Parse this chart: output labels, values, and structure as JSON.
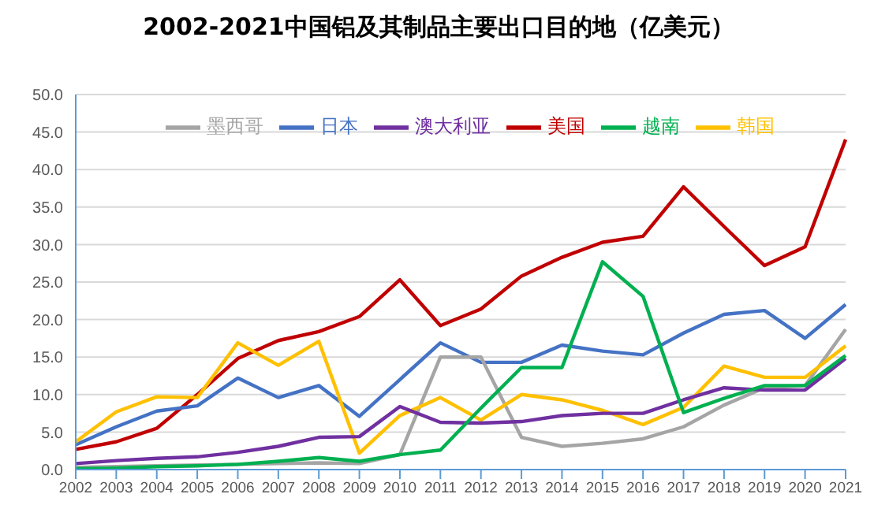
{
  "chart_data": {
    "type": "line",
    "title": "2002-2021中国铝及其制品主要出口目的地（亿美元）",
    "categories": [
      "2002",
      "2003",
      "2004",
      "2005",
      "2006",
      "2007",
      "2008",
      "2009",
      "2010",
      "2011",
      "2012",
      "2013",
      "2014",
      "2015",
      "2016",
      "2017",
      "2018",
      "2019",
      "2020",
      "2021"
    ],
    "series": [
      {
        "name": "美国",
        "color": "#c00000",
        "values": [
          2.7,
          3.7,
          5.5,
          10,
          14.8,
          17.2,
          18.4,
          20.4,
          25.3,
          19.2,
          21.4,
          25.8,
          28.3,
          30.3,
          31.1,
          37.7,
          32.4,
          27.2,
          29.7,
          44.0
        ]
      },
      {
        "name": "日本",
        "color": "#4472c4",
        "values": [
          3.3,
          5.7,
          7.8,
          8.5,
          12.2,
          9.6,
          11.2,
          7.1,
          12.0,
          16.9,
          14.3,
          14.3,
          16.6,
          15.8,
          15.3,
          18.2,
          20.7,
          21.2,
          17.5,
          22.0
        ]
      },
      {
        "name": "墨西哥",
        "color": "#a5a5a5",
        "values": [
          0.3,
          0.4,
          0.5,
          0.6,
          0.7,
          0.8,
          0.9,
          0.8,
          2.0,
          15.0,
          15.0,
          4.3,
          3.1,
          3.5,
          4.1,
          5.7,
          8.6,
          10.9,
          11.2,
          18.7
        ]
      },
      {
        "name": "韩国",
        "color": "#ffc000",
        "values": [
          3.7,
          7.7,
          9.7,
          9.6,
          16.9,
          13.9,
          17.1,
          2.2,
          7.2,
          9.6,
          6.6,
          10.0,
          9.3,
          7.9,
          6.0,
          8.3,
          13.8,
          12.3,
          12.3,
          16.5
        ]
      },
      {
        "name": "澳大利亚",
        "color": "#7030a0",
        "values": [
          0.8,
          1.2,
          1.5,
          1.7,
          2.3,
          3.1,
          4.3,
          4.4,
          8.4,
          6.3,
          6.2,
          6.4,
          7.2,
          7.5,
          7.5,
          9.3,
          10.9,
          10.6,
          10.6,
          14.8
        ]
      },
      {
        "name": "越南",
        "color": "#00b050",
        "values": [
          0.1,
          0.2,
          0.4,
          0.5,
          0.7,
          1.1,
          1.6,
          1.1,
          2.0,
          2.6,
          8.2,
          13.6,
          13.6,
          27.7,
          23.1,
          7.6,
          9.5,
          11.2,
          11.2,
          15.2
        ]
      }
    ],
    "ylim": [
      0,
      50
    ],
    "yticks": [
      {
        "value": 0,
        "label": "0.0"
      },
      {
        "value": 5,
        "label": "5.0"
      },
      {
        "value": 10,
        "label": "10.0"
      },
      {
        "value": 15,
        "label": "15.0"
      },
      {
        "value": 20,
        "label": "20.0"
      },
      {
        "value": 25,
        "label": "25.0"
      },
      {
        "value": 30,
        "label": "30.0"
      },
      {
        "value": 35,
        "label": "35.0"
      },
      {
        "value": 40,
        "label": "40.0"
      },
      {
        "value": 45,
        "label": "45.0"
      },
      {
        "value": 50,
        "label": "50.0"
      }
    ],
    "grid": "y",
    "legend": "top",
    "marker": "none",
    "line_style": "solid"
  }
}
